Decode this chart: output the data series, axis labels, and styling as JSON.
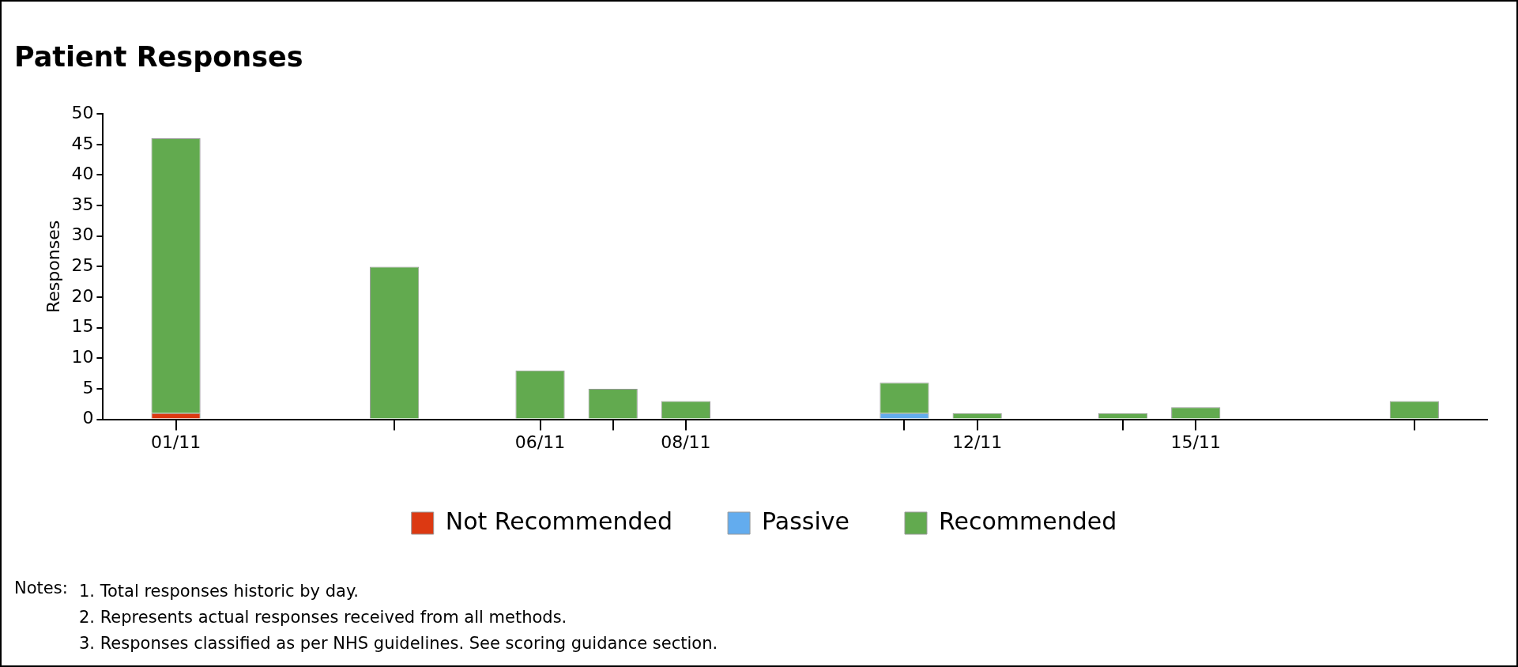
{
  "chart_data": {
    "type": "bar",
    "title": "Patient Responses",
    "ylabel": "Responses",
    "stacked": true,
    "x": [
      "--11-01",
      "--11-04",
      "--11-06",
      "--11-07",
      "--11-08",
      "--11-11",
      "--11-12",
      "--11-14",
      "--11-15",
      "--11-18"
    ],
    "series": [
      {
        "name": "Not Recommended",
        "color": "#dc3912",
        "values": [
          1,
          0,
          0,
          0,
          0,
          0,
          0,
          0,
          0,
          0
        ]
      },
      {
        "name": "Passive",
        "color": "#63acee",
        "values": [
          0,
          0,
          0,
          0,
          0,
          1,
          0,
          0,
          0,
          0
        ]
      },
      {
        "name": "Recommended",
        "color": "#62aa4f",
        "values": [
          45,
          25,
          8,
          5,
          3,
          5,
          1,
          1,
          2,
          3
        ]
      }
    ],
    "xlim": [
      "--10-31",
      "--11-19"
    ],
    "xticks": [
      {
        "value": "--11-01",
        "label": "01/11"
      },
      {
        "value": "--11-04",
        "label": null
      },
      {
        "value": "--11-06",
        "label": "06/11"
      },
      {
        "value": "--11-07",
        "label": null
      },
      {
        "value": "--11-08",
        "label": "08/11"
      },
      {
        "value": "--11-11",
        "label": null
      },
      {
        "value": "--11-12",
        "label": "12/11"
      },
      {
        "value": "--11-14",
        "label": null
      },
      {
        "value": "--11-15",
        "label": "15/11"
      },
      {
        "value": "--11-18",
        "label": null
      }
    ],
    "ylim": [
      0,
      50
    ],
    "yticks": [
      0,
      5,
      10,
      15,
      20,
      25,
      30,
      35,
      40,
      45,
      50
    ],
    "grid": false,
    "legend": "bottom",
    "annotations": [
      "Notes:",
      "1.  Total responses historic by day.",
      "2.  Represents actual responses received from all methods.",
      "3.  Responses classified as per NHS guidelines. See scoring guidance section."
    ]
  }
}
